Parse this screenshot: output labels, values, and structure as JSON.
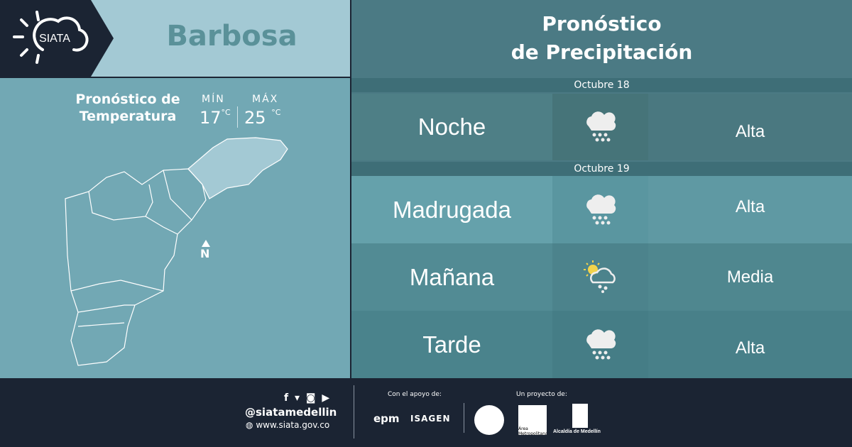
{
  "brand": {
    "logo_text": "SIATA",
    "city": "Barbosa"
  },
  "temperature": {
    "title_line1": "Pronóstico de",
    "title_line2": "Temperatura",
    "min_label": "MÍN",
    "min_value": "17",
    "min_unit": "°C",
    "max_label": "MÁX",
    "max_value": "25",
    "max_unit": "°C"
  },
  "map": {
    "north_label": "N",
    "highlight_color": "#a3c9d4"
  },
  "precipitation": {
    "title_line1": "Pronóstico",
    "title_line2": "de Precipitación",
    "dates": [
      "Octubre 18",
      "Octubre 19"
    ],
    "rows": [
      {
        "period": "Noche",
        "icon": "heavy-rain-cloud-icon",
        "level": "Alta"
      },
      {
        "period": "Madrugada",
        "icon": "heavy-rain-cloud-icon",
        "level": "Alta"
      },
      {
        "period": "Mañana",
        "icon": "sun-cloud-rain-icon",
        "level": "Media"
      },
      {
        "period": "Tarde",
        "icon": "heavy-rain-cloud-icon",
        "level": "Alta"
      }
    ]
  },
  "footer": {
    "social_handle": "@siatamedellin",
    "website": "www.siata.gov.co",
    "support_label": "Con el apoyo de:",
    "support_logos": [
      "epm",
      "ISAGEN"
    ],
    "project_label": "Un proyecto de:",
    "project_logos": [
      "Área Metropolitana",
      "Alcaldía de Medellín"
    ]
  }
}
